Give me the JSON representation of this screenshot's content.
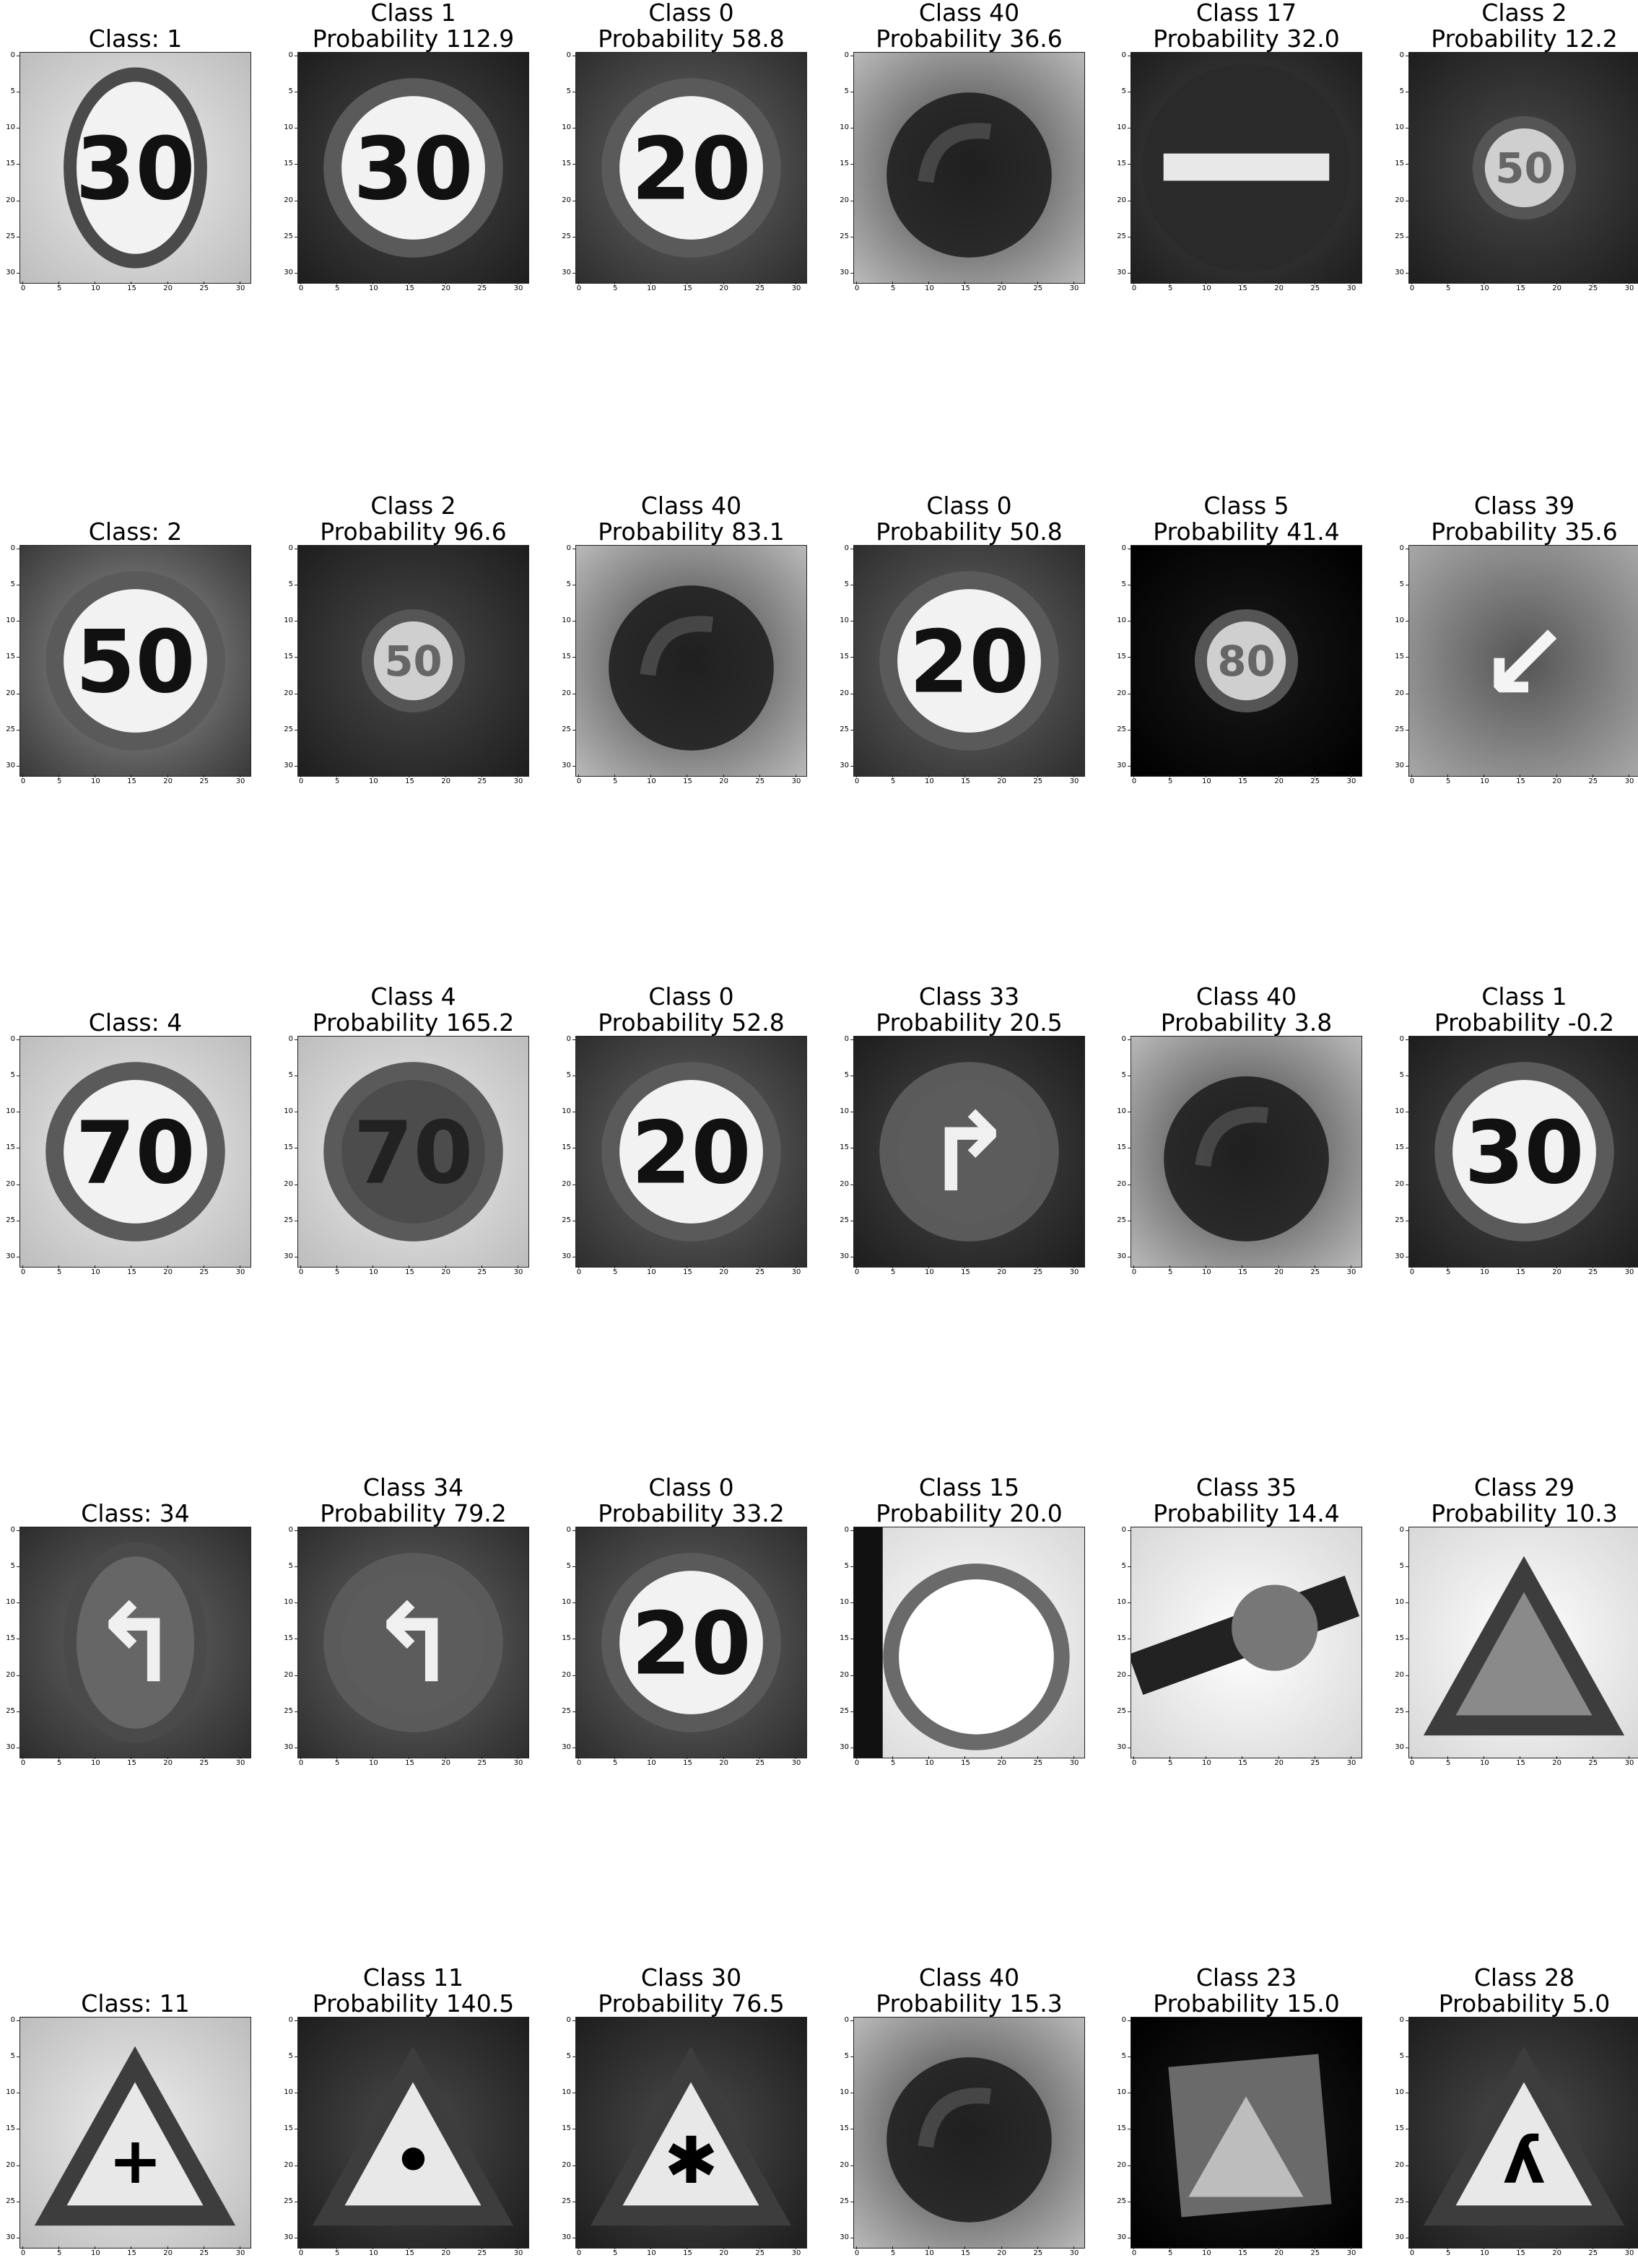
{
  "figure": {
    "ticks": [
      "0",
      "5",
      "10",
      "15",
      "20",
      "25",
      "30"
    ],
    "rows": [
      {
        "cells": [
          {
            "title": "Class: 1",
            "glyph": "30",
            "shape": "ellipse",
            "tone": "light"
          },
          {
            "title": "Class 1\nProbability 112.9",
            "glyph": "30",
            "shape": "circle",
            "tone": "dark"
          },
          {
            "title": "Class 0\nProbability 58.8",
            "glyph": "20",
            "shape": "circle",
            "tone": "mid"
          },
          {
            "title": "Class 40\nProbability 36.6",
            "glyph": "",
            "shape": "blur",
            "tone": "blur"
          },
          {
            "title": "Class 17\nProbability 32.0",
            "glyph": "",
            "shape": "noentry",
            "tone": "dark"
          },
          {
            "title": "Class 2\nProbability 12.2",
            "glyph": "50",
            "shape": "small",
            "tone": "dark"
          }
        ]
      },
      {
        "cells": [
          {
            "title": "Class: 2",
            "glyph": "50",
            "shape": "circle",
            "tone": "noisy"
          },
          {
            "title": "Class 2\nProbability 96.6",
            "glyph": "50",
            "shape": "small",
            "tone": "dark"
          },
          {
            "title": "Class 40\nProbability 83.1",
            "glyph": "",
            "shape": "blur",
            "tone": "blur"
          },
          {
            "title": "Class 0\nProbability 50.8",
            "glyph": "20",
            "shape": "circle",
            "tone": "mid"
          },
          {
            "title": "Class 5\nProbability 41.4",
            "glyph": "80",
            "shape": "small",
            "tone": "black"
          },
          {
            "title": "Class 39\nProbability 35.6",
            "glyph": "↙",
            "shape": "arrow",
            "tone": "blur"
          }
        ]
      },
      {
        "cells": [
          {
            "title": "Class: 4",
            "glyph": "70",
            "shape": "circle",
            "tone": "light"
          },
          {
            "title": "Class 4\nProbability 165.2",
            "glyph": "70",
            "shape": "darkcircle",
            "tone": "light"
          },
          {
            "title": "Class 0\nProbability 52.8",
            "glyph": "20",
            "shape": "circle",
            "tone": "mid"
          },
          {
            "title": "Class 33\nProbability 20.5",
            "glyph": "↱",
            "shape": "circle",
            "tone": "dark"
          },
          {
            "title": "Class 40\nProbability 3.8",
            "glyph": "",
            "shape": "blur",
            "tone": "blur"
          },
          {
            "title": "Class 1\nProbability -0.2",
            "glyph": "30",
            "shape": "circle",
            "tone": "dark"
          }
        ]
      },
      {
        "cells": [
          {
            "title": "Class: 34",
            "glyph": "↰",
            "shape": "ellipse",
            "tone": "mid"
          },
          {
            "title": "Class 34\nProbability 79.2",
            "glyph": "↰",
            "shape": "circle",
            "tone": "mid"
          },
          {
            "title": "Class 0\nProbability 33.2",
            "glyph": "20",
            "shape": "circle",
            "tone": "mid"
          },
          {
            "title": "Class 15\nProbability 20.0",
            "glyph": "",
            "shape": "ring",
            "tone": "white"
          },
          {
            "title": "Class 35\nProbability 14.4",
            "glyph": "",
            "shape": "scene",
            "tone": "white"
          },
          {
            "title": "Class 29\nProbability 10.3",
            "glyph": "",
            "shape": "triangle",
            "tone": "white"
          }
        ]
      },
      {
        "cells": [
          {
            "title": "Class: 11",
            "glyph": "+",
            "shape": "triangle",
            "tone": "light"
          },
          {
            "title": "Class 11\nProbability 140.5",
            "glyph": "•",
            "shape": "triangle",
            "tone": "dark"
          },
          {
            "title": "Class 30\nProbability 76.5",
            "glyph": "✱",
            "shape": "triangle",
            "tone": "dark"
          },
          {
            "title": "Class 40\nProbability 15.3",
            "glyph": "",
            "shape": "blur",
            "tone": "blur"
          },
          {
            "title": "Class 23\nProbability 15.0",
            "glyph": "",
            "shape": "tiltedsquare",
            "tone": "black"
          },
          {
            "title": "Class 28\nProbability 5.0",
            "glyph": "ʎ",
            "shape": "triangle",
            "tone": "dark"
          }
        ]
      }
    ]
  }
}
